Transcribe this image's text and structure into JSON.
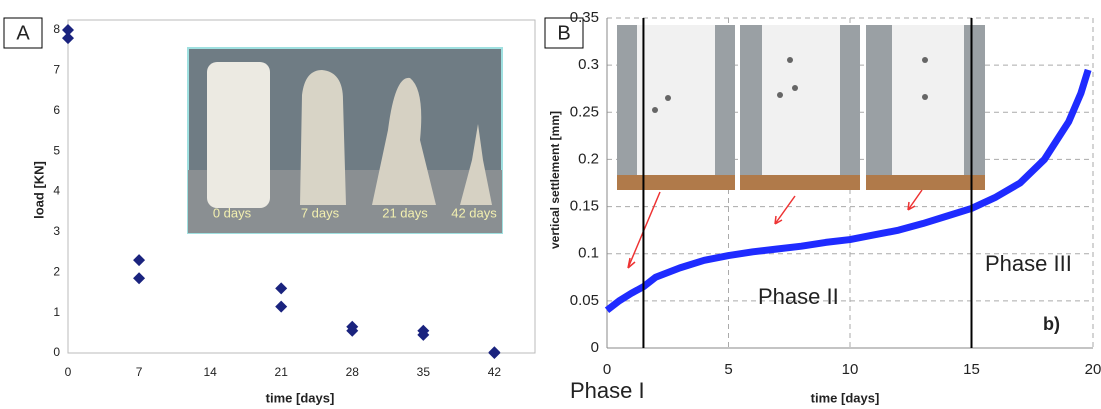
{
  "chart_data": [
    {
      "type": "scatter",
      "panel_label": "A",
      "x_label": "time [days]",
      "y_label": "load [KN]",
      "x": [
        0,
        0,
        7,
        7,
        21,
        21,
        28,
        28,
        35,
        35,
        42,
        42
      ],
      "values": [
        8,
        7.8,
        2.3,
        1.85,
        1.6,
        1.15,
        0.65,
        0.55,
        0.55,
        0.45,
        0.02,
        0
      ],
      "color": "#1a237e",
      "xlim": [
        0,
        46
      ],
      "ylim": [
        0,
        8
      ],
      "xticks": [
        0,
        7,
        14,
        21,
        28,
        35,
        42
      ],
      "yticks": [
        0,
        1,
        2,
        3,
        4,
        5,
        6,
        7,
        8
      ],
      "grid": false,
      "inset_labels": [
        "0 days",
        "7 days",
        "21 days",
        "42 days"
      ]
    },
    {
      "type": "line",
      "panel_label": "B",
      "x_label": "time [days]",
      "y_label": "vertical settlement [mm]",
      "x": [
        0,
        0.5,
        1,
        1.5,
        2,
        3,
        4,
        5,
        6,
        7,
        8,
        9,
        10,
        11,
        12,
        13,
        14,
        15,
        16,
        17,
        18,
        19,
        19.5,
        19.8
      ],
      "values": [
        0.04,
        0.05,
        0.058,
        0.065,
        0.075,
        0.085,
        0.093,
        0.098,
        0.102,
        0.105,
        0.108,
        0.112,
        0.115,
        0.12,
        0.125,
        0.132,
        0.14,
        0.148,
        0.16,
        0.175,
        0.2,
        0.24,
        0.27,
        0.295
      ],
      "color": "#1f2bff",
      "xlim": [
        0,
        20
      ],
      "ylim": [
        0,
        0.35
      ],
      "xticks": [
        0,
        5,
        10,
        15,
        20
      ],
      "yticks": [
        0,
        0.05,
        0.1,
        0.15,
        0.2,
        0.25,
        0.3,
        0.35
      ],
      "grid": true,
      "phase_lines": [
        1.5,
        15
      ],
      "annotations": [
        "Phase I",
        "Phase II",
        "Phase III",
        "b)"
      ]
    }
  ]
}
